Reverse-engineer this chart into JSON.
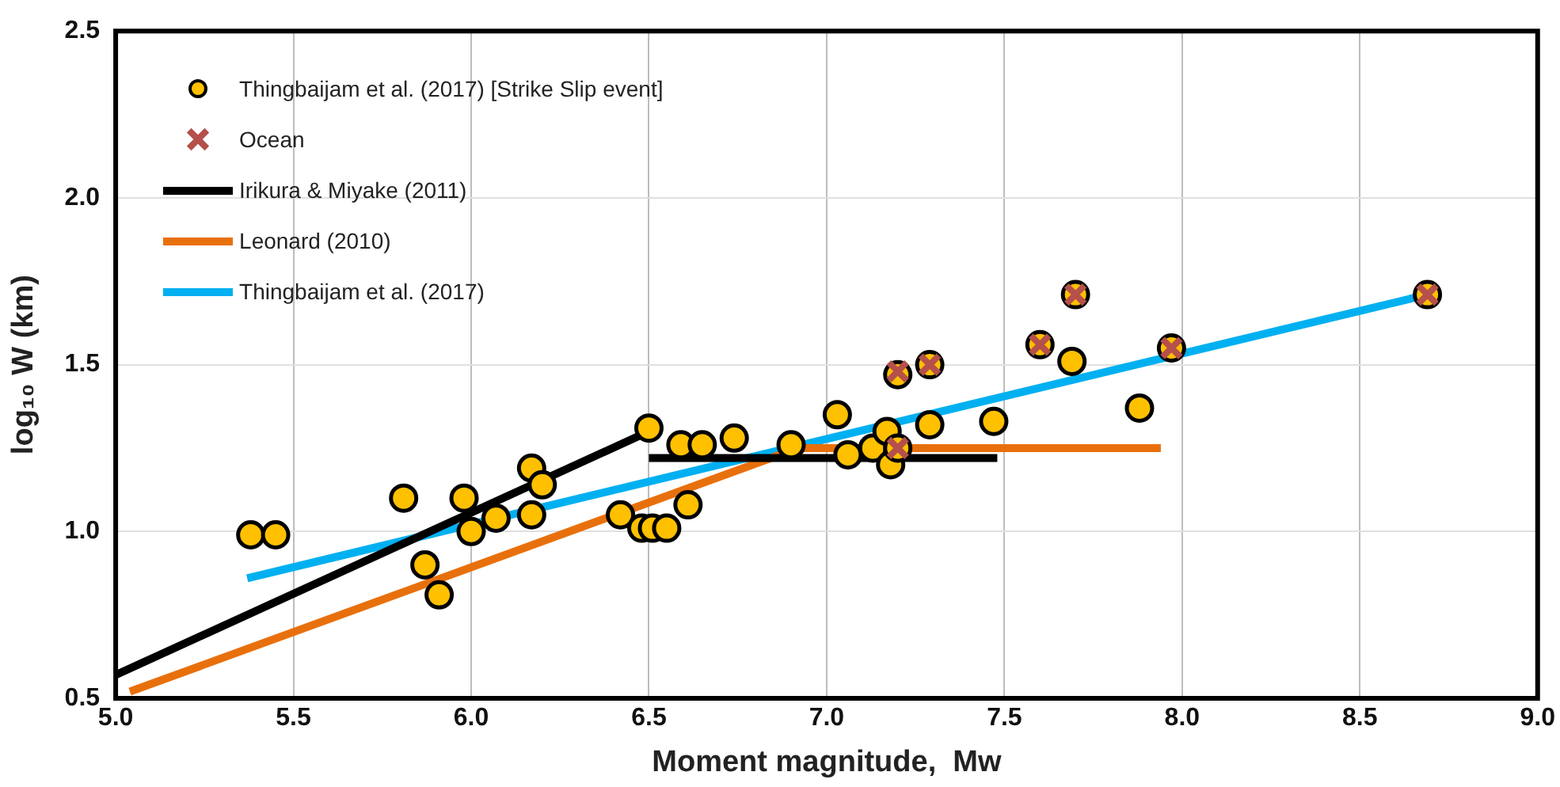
{
  "chart_data": {
    "type": "scatter",
    "xlabel": "Moment magnitude,  Mw",
    "ylabel": "log₁₀ W (km)",
    "xlim": [
      5,
      9
    ],
    "xticks": [
      {
        "value": 5,
        "label": "5.0"
      },
      {
        "value": 5.5,
        "label": "5.5"
      },
      {
        "value": 6,
        "label": "6.0"
      },
      {
        "value": 6.5,
        "label": "6.5"
      },
      {
        "value": 7,
        "label": "7.0"
      },
      {
        "value": 7.5,
        "label": "7.5"
      },
      {
        "value": 8,
        "label": "8.0"
      },
      {
        "value": 8.5,
        "label": "8.5"
      },
      {
        "value": 9,
        "label": "9.0"
      }
    ],
    "ylim": [
      0.5,
      2.5
    ],
    "yticks": [
      {
        "value": 0.5,
        "label": "0.5"
      },
      {
        "value": 1,
        "label": "1.0"
      },
      {
        "value": 1.5,
        "label": "1.5"
      },
      {
        "value": 2,
        "label": "2.0"
      },
      {
        "value": 2.5,
        "label": "2.5"
      }
    ],
    "grid": true,
    "legend": "top left",
    "series": [
      {
        "name": "Thingbaijam et al. (2017) [Strike Slip event]",
        "marker": "circle",
        "color": "#ffc000",
        "x": [
          5.38,
          5.45,
          5.81,
          5.87,
          5.91,
          5.98,
          6.0,
          6.07,
          6.17,
          6.2,
          6.17,
          6.42,
          6.48,
          6.51,
          6.55,
          6.61,
          6.5,
          6.59,
          6.65,
          6.74,
          6.9,
          7.03,
          7.06,
          7.13,
          7.17,
          7.18,
          7.2,
          7.2,
          7.29,
          7.29,
          7.47,
          7.6,
          7.69,
          7.7,
          7.88,
          7.97,
          8.69
        ],
        "values": [
          0.99,
          0.99,
          1.1,
          0.9,
          0.81,
          1.1,
          1.0,
          1.04,
          1.19,
          1.14,
          1.05,
          1.05,
          1.01,
          1.01,
          1.01,
          1.08,
          1.31,
          1.26,
          1.26,
          1.28,
          1.26,
          1.35,
          1.23,
          1.25,
          1.3,
          1.2,
          1.25,
          1.47,
          1.5,
          1.32,
          1.33,
          1.56,
          1.51,
          1.71,
          1.37,
          1.55,
          1.71
        ]
      },
      {
        "name": "Ocean",
        "marker": "cross",
        "color": "#b5504a",
        "x": [
          7.2,
          7.2,
          7.29,
          7.6,
          7.7,
          7.97,
          8.69
        ],
        "values": [
          1.25,
          1.48,
          1.5,
          1.56,
          1.71,
          1.55,
          1.71
        ]
      },
      {
        "name": "Irikura & Miyake (2011)",
        "type": "line",
        "marker": "none",
        "color": "#000000",
        "x": [
          5.0,
          6.5
        ],
        "values": [
          0.57,
          1.3
        ]
      },
      {
        "type": "line",
        "marker": "none",
        "color": "#000000",
        "x": [
          6.5,
          7.48
        ],
        "values": [
          1.22,
          1.22
        ]
      },
      {
        "name": "Leonard (2010)",
        "type": "line",
        "marker": "none",
        "color": "#e8700c",
        "x": [
          5.04,
          6.92,
          7.94
        ],
        "values": [
          0.52,
          1.25,
          1.25
        ]
      },
      {
        "name": "Thingbaijam et al. (2017)",
        "type": "line",
        "marker": "none",
        "color": "#00b0f0",
        "x": [
          5.37,
          8.69
        ],
        "values": [
          0.86,
          1.71
        ]
      }
    ]
  }
}
